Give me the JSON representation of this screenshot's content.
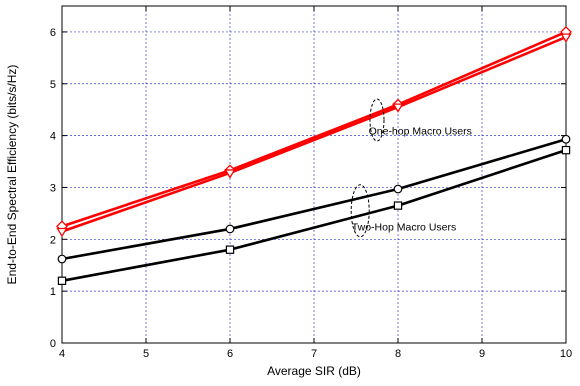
{
  "chart_data": {
    "type": "line",
    "xlabel": "Average SIR (dB)",
    "ylabel": "End-to-End Spectral Efficiency (bits/s/Hz)",
    "xlim": [
      4,
      10
    ],
    "ylim": [
      0,
      6.5
    ],
    "xticks": [
      "4",
      "5",
      "6",
      "7",
      "8",
      "9",
      "10"
    ],
    "yticks": [
      "0",
      "1",
      "2",
      "3",
      "4",
      "5",
      "6"
    ],
    "grid": true,
    "x": [
      4,
      6,
      8,
      10
    ],
    "series": [
      {
        "marker": "diamond",
        "color": "#ff0000",
        "values": [
          2.25,
          3.33,
          4.6,
          6.0
        ]
      },
      {
        "marker": "triangle-down",
        "color": "#ff0000",
        "values": [
          2.15,
          3.28,
          4.55,
          5.9
        ]
      },
      {
        "marker": "circle",
        "color": "#000000",
        "values": [
          1.62,
          2.2,
          2.97,
          3.93
        ]
      },
      {
        "marker": "square",
        "color": "#000000",
        "values": [
          1.2,
          1.8,
          2.65,
          3.72
        ]
      }
    ],
    "annotations": [
      {
        "text": "One-hop Macro Users",
        "x": 7.65,
        "y": 4.1
      },
      {
        "text": "Two-Hop Macro Users",
        "x": 7.45,
        "y": 2.25
      }
    ]
  }
}
